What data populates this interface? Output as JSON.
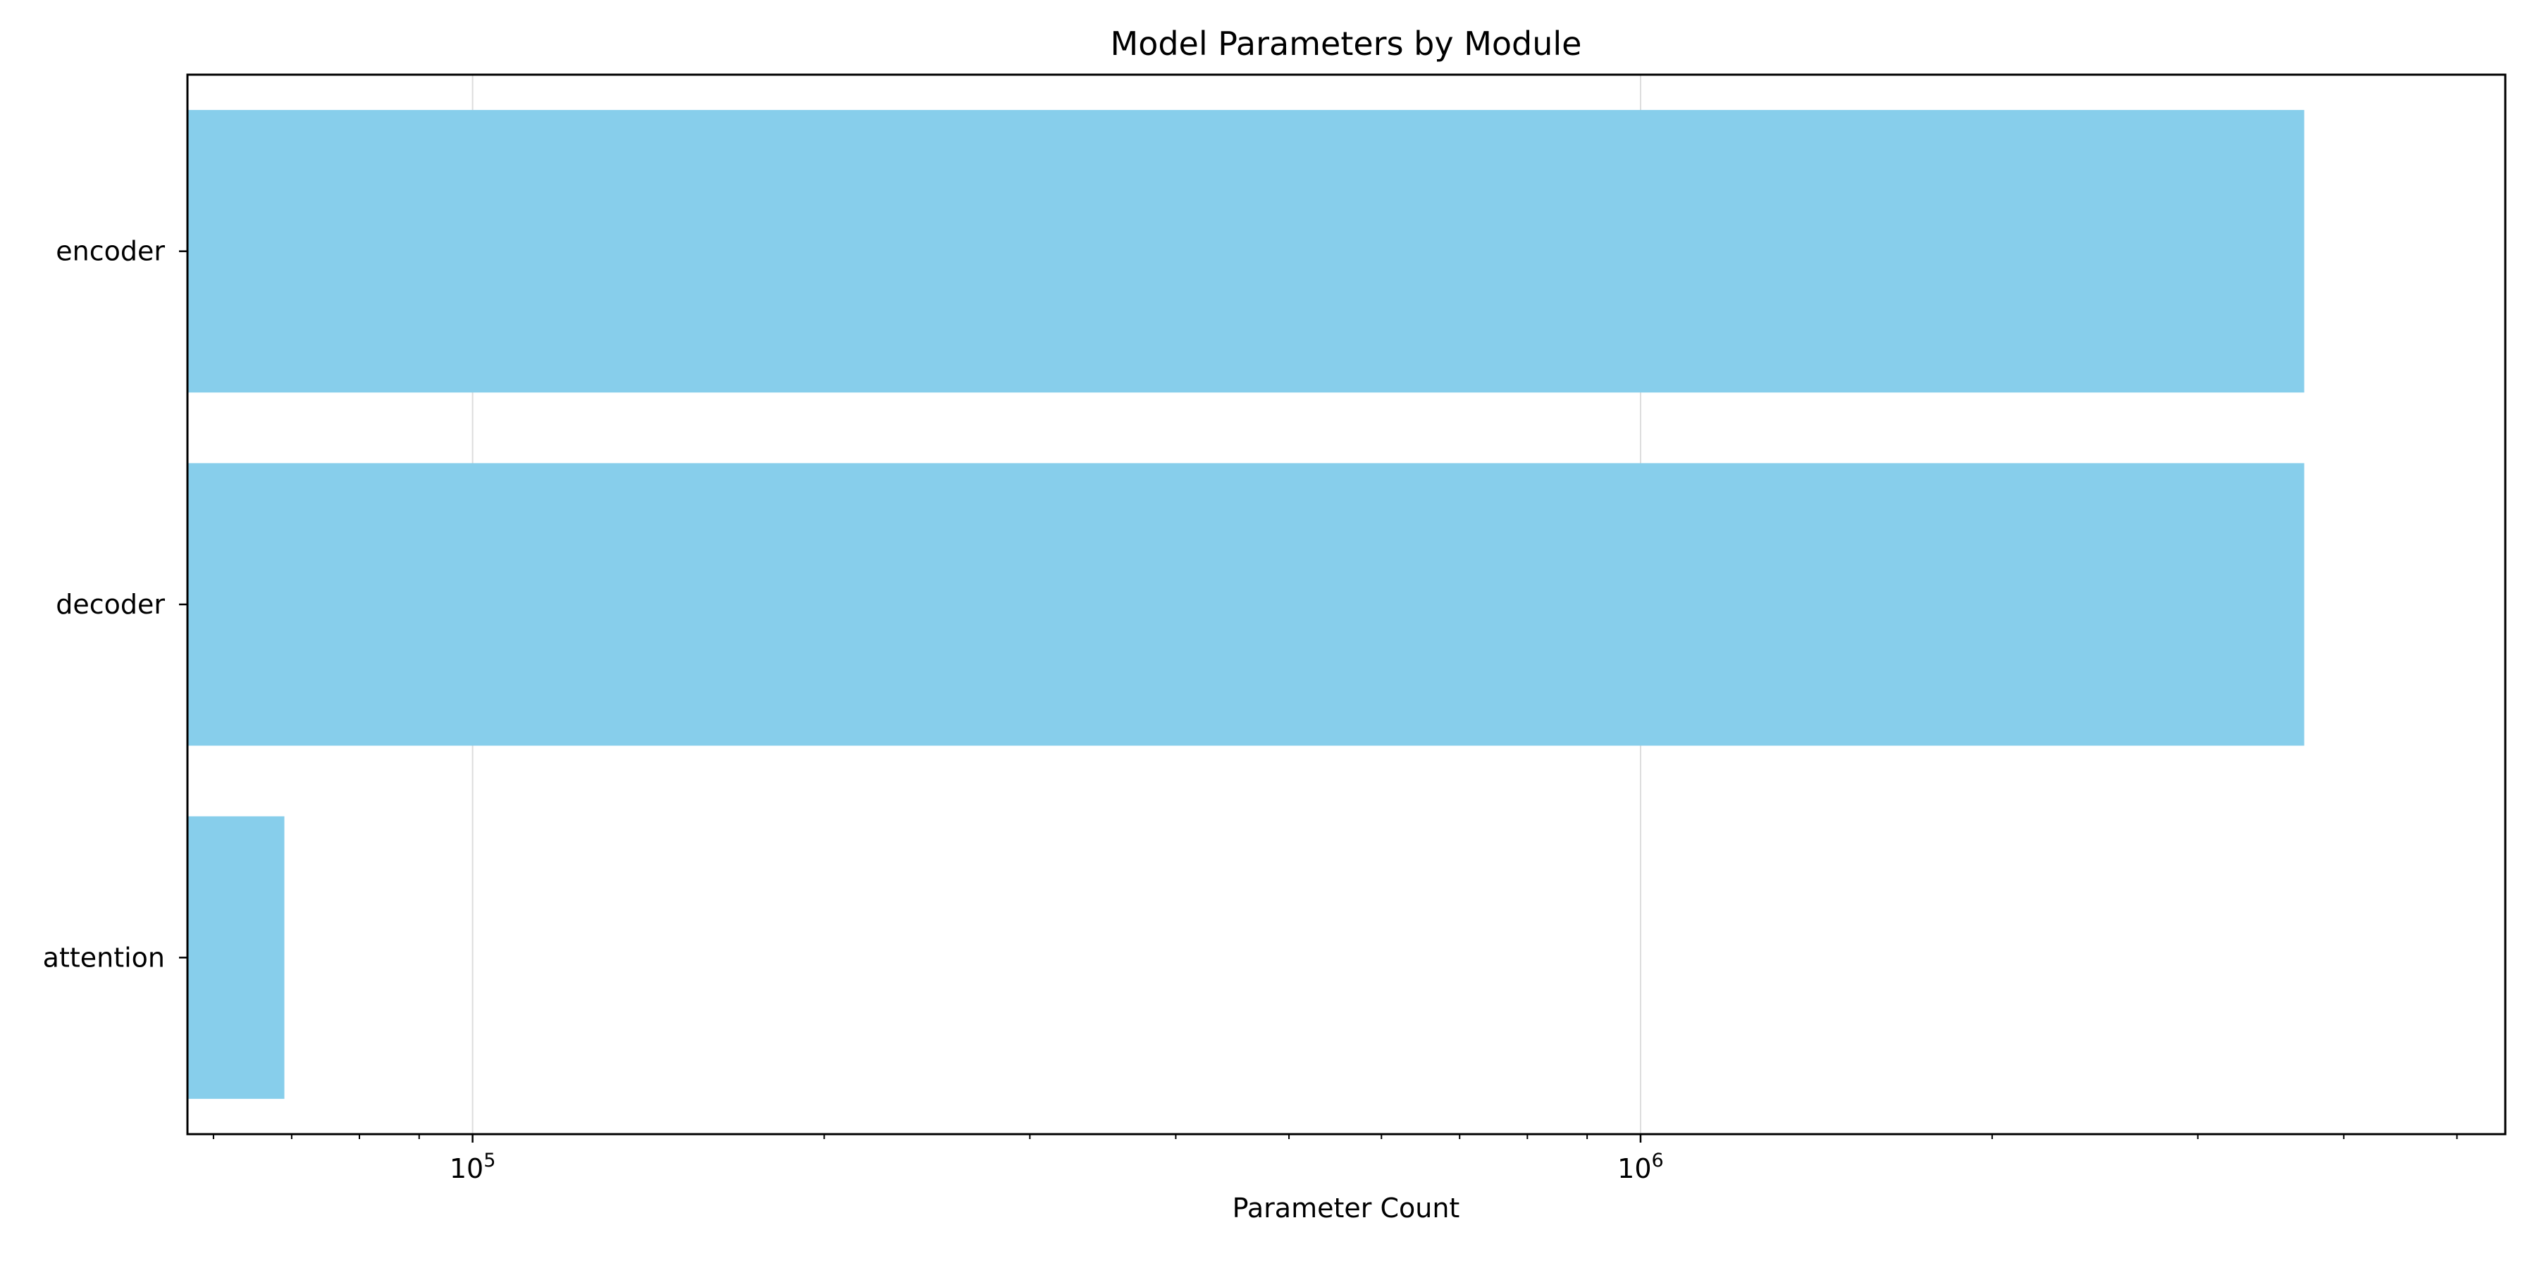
{
  "chart_data": {
    "type": "bar",
    "orientation": "horizontal",
    "title": "Model Parameters by Module",
    "xlabel": "Parameter Count",
    "ylabel": "",
    "x_scale": "log",
    "xlim": [
      57000,
      5500000
    ],
    "x_major_ticks": [
      100000,
      1000000
    ],
    "x_major_tick_labels": [
      "10",
      "10"
    ],
    "x_major_tick_exponents": [
      "5",
      "6"
    ],
    "categories": [
      "encoder",
      "decoder",
      "attention"
    ],
    "values": [
      3700000,
      3700000,
      69000
    ],
    "grid": "x",
    "legend": "none",
    "colors": {
      "bar": "#87ceeb",
      "grid": "#dddddd",
      "axes": "#000000"
    }
  }
}
